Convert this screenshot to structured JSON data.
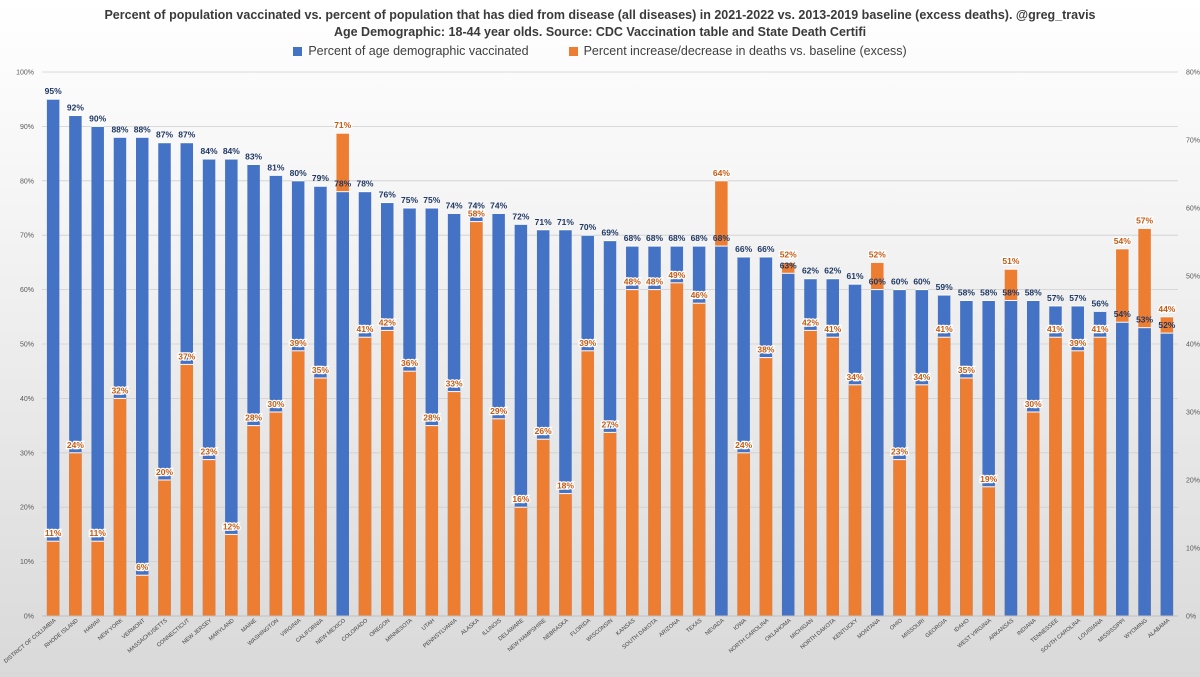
{
  "chart_data": {
    "type": "bar",
    "title": "Percent of population vaccinated vs. percent of population that has died from disease (all diseases) in 2021-2022 vs. 2013-2019 baseline (excess deaths).  @greg_travis",
    "subtitle": "Age Demographic: 18-44 year olds.  Source: CDC Vaccination table and State Death Certifi",
    "categories": [
      "DISTRICT OF COLUMBIA",
      "RHODE ISLAND",
      "HAWAII",
      "NEW YORK",
      "VERMONT",
      "MASSACHUSETTS",
      "CONNECTICUT",
      "NEW JERSEY",
      "MARYLAND",
      "MAINE",
      "WASHINGTON",
      "VIRGINIA",
      "CALIFORNIA",
      "NEW MEXICO",
      "COLORADO",
      "OREGON",
      "MINNESOTA",
      "UTAH",
      "PENNSYLVANIA",
      "ALASKA",
      "ILLINOIS",
      "DELAWARE",
      "NEW HAMPSHIRE",
      "NEBRASKA",
      "FLORIDA",
      "WISCONSIN",
      "KANSAS",
      "SOUTH DAKOTA",
      "ARIZONA",
      "TEXAS",
      "NEVADA",
      "IOWA",
      "NORTH CAROLINA",
      "OKLAHOMA",
      "MICHIGAN",
      "NORTH DAKOTA",
      "KENTUCKY",
      "MONTANA",
      "OHIO",
      "MISSOURI",
      "GEORGIA",
      "IDAHO",
      "WEST VIRGINIA",
      "ARKANSAS",
      "INDIANA",
      "TENNESSEE",
      "SOUTH CAROLINA",
      "LOUISIANA",
      "MISSISSIPPI",
      "WYOMING",
      "ALABAMA"
    ],
    "series": [
      {
        "name": "Percent of age demographic vaccinated",
        "color": "#4472c4",
        "label_color": "#1f3864",
        "axis": "left",
        "values": [
          95,
          92,
          90,
          88,
          88,
          87,
          87,
          84,
          84,
          83,
          81,
          80,
          79,
          78,
          78,
          76,
          75,
          75,
          74,
          74,
          74,
          72,
          71,
          71,
          70,
          69,
          68,
          68,
          68,
          68,
          68,
          66,
          66,
          63,
          62,
          62,
          61,
          60,
          60,
          60,
          59,
          58,
          58,
          58,
          58,
          57,
          57,
          56,
          54,
          53,
          52
        ]
      },
      {
        "name": "Percent increase/decrease in deaths vs. baseline (excess)",
        "color": "#ed7d31",
        "label_color": "#c55a11",
        "axis": "right",
        "values": [
          11,
          24,
          11,
          32,
          6,
          20,
          37,
          23,
          12,
          28,
          30,
          39,
          35,
          71,
          41,
          42,
          36,
          28,
          33,
          58,
          29,
          16,
          26,
          18,
          39,
          27,
          48,
          48,
          49,
          46,
          64,
          24,
          38,
          52,
          42,
          41,
          34,
          52,
          23,
          34,
          41,
          35,
          19,
          51,
          30,
          41,
          39,
          41,
          54,
          57,
          44
        ]
      }
    ],
    "y_left": {
      "range": [
        0,
        100
      ],
      "ticks": [
        "0%",
        "10%",
        "20%",
        "30%",
        "40%",
        "50%",
        "60%",
        "70%",
        "80%",
        "90%",
        "100%"
      ]
    },
    "y_right": {
      "range": [
        0,
        80
      ],
      "ticks": [
        "0%",
        "10%",
        "20%",
        "30%",
        "40%",
        "50%",
        "60%",
        "70%",
        "80%"
      ]
    },
    "grid": true,
    "legend_position": "top"
  }
}
